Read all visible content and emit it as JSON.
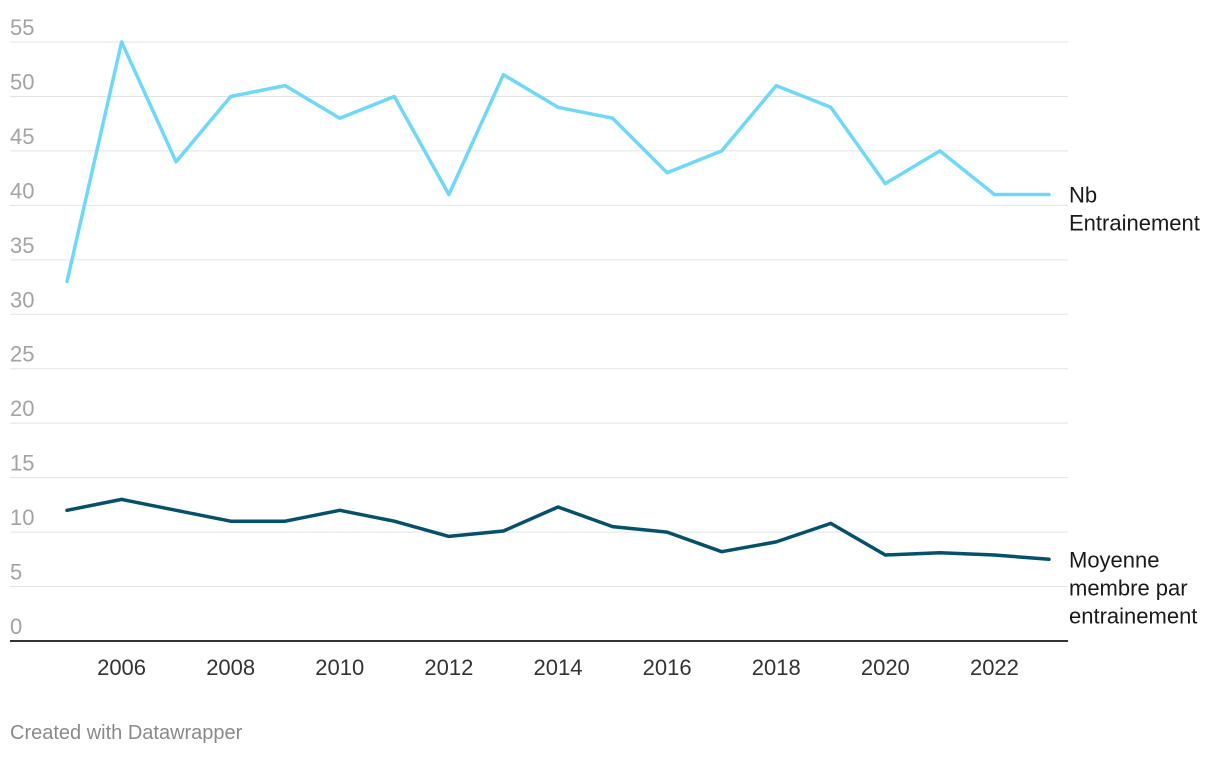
{
  "chart_data": {
    "type": "line",
    "x": [
      2005,
      2006,
      2007,
      2008,
      2009,
      2010,
      2011,
      2012,
      2013,
      2014,
      2015,
      2016,
      2017,
      2018,
      2019,
      2020,
      2021,
      2022,
      2023
    ],
    "series": [
      {
        "name": "Nb Entrainement",
        "label_lines": [
          "Nb",
          "Entrainement"
        ],
        "color": "#6fd8f9",
        "values": [
          33,
          55,
          44,
          50,
          51,
          48,
          50,
          41,
          52,
          49,
          48,
          43,
          45,
          51,
          49,
          42,
          45,
          41,
          41
        ]
      },
      {
        "name": "Moyenne membre par entrainement",
        "label_lines": [
          "Moyenne",
          "membre par",
          "entrainement"
        ],
        "color": "#05506b",
        "values": [
          12,
          13,
          12,
          11,
          11,
          12,
          11,
          9.6,
          10.1,
          12.3,
          10.5,
          10,
          8.2,
          9.1,
          10.8,
          7.9,
          8.1,
          7.9,
          7.5
        ]
      }
    ],
    "y_ticks": [
      "0",
      "5",
      "10",
      "15",
      "20",
      "25",
      "30",
      "35",
      "40",
      "45",
      "50",
      "55"
    ],
    "x_ticks": [
      "2006",
      "2008",
      "2010",
      "2012",
      "2014",
      "2016",
      "2018",
      "2020",
      "2022"
    ],
    "ylim": [
      0,
      55
    ],
    "xlim": [
      2005,
      2023
    ],
    "grid": true,
    "title": "",
    "xlabel": "",
    "ylabel": ""
  },
  "footer": {
    "credit": "Created with Datawrapper"
  }
}
